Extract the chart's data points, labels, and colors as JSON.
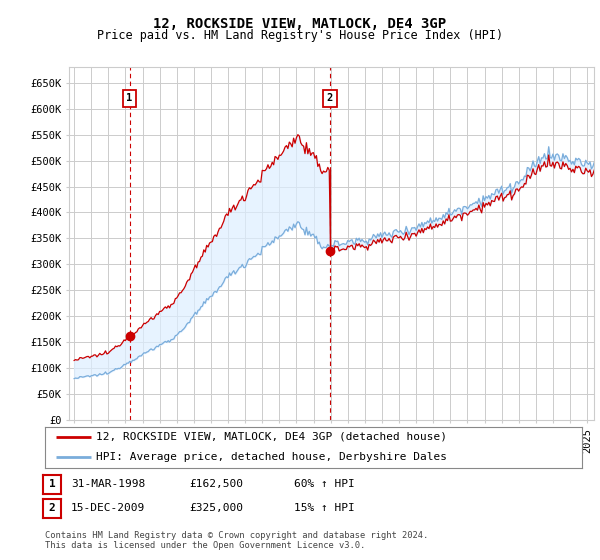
{
  "title": "12, ROCKSIDE VIEW, MATLOCK, DE4 3GP",
  "subtitle": "Price paid vs. HM Land Registry's House Price Index (HPI)",
  "ylim": [
    0,
    680000
  ],
  "yticks": [
    0,
    50000,
    100000,
    150000,
    200000,
    250000,
    300000,
    350000,
    400000,
    450000,
    500000,
    550000,
    600000,
    650000
  ],
  "xlim_start": 1994.7,
  "xlim_end": 2025.4,
  "sale1_year": 1998.24,
  "sale1_price": 162500,
  "sale2_year": 2009.96,
  "sale2_price": 325000,
  "line1_color": "#cc0000",
  "line2_color": "#7aaddb",
  "fill_color": "#ddeeff",
  "vline_color": "#cc0000",
  "grid_color": "#cccccc",
  "bg_color": "#ffffff",
  "legend1_text": "12, ROCKSIDE VIEW, MATLOCK, DE4 3GP (detached house)",
  "legend2_text": "HPI: Average price, detached house, Derbyshire Dales",
  "table_row1": [
    "1",
    "31-MAR-1998",
    "£162,500",
    "60% ↑ HPI"
  ],
  "table_row2": [
    "2",
    "15-DEC-2009",
    "£325,000",
    "15% ↑ HPI"
  ],
  "footer": "Contains HM Land Registry data © Crown copyright and database right 2024.\nThis data is licensed under the Open Government Licence v3.0.",
  "title_fontsize": 10,
  "subtitle_fontsize": 8.5,
  "tick_fontsize": 7.5,
  "legend_fontsize": 8
}
